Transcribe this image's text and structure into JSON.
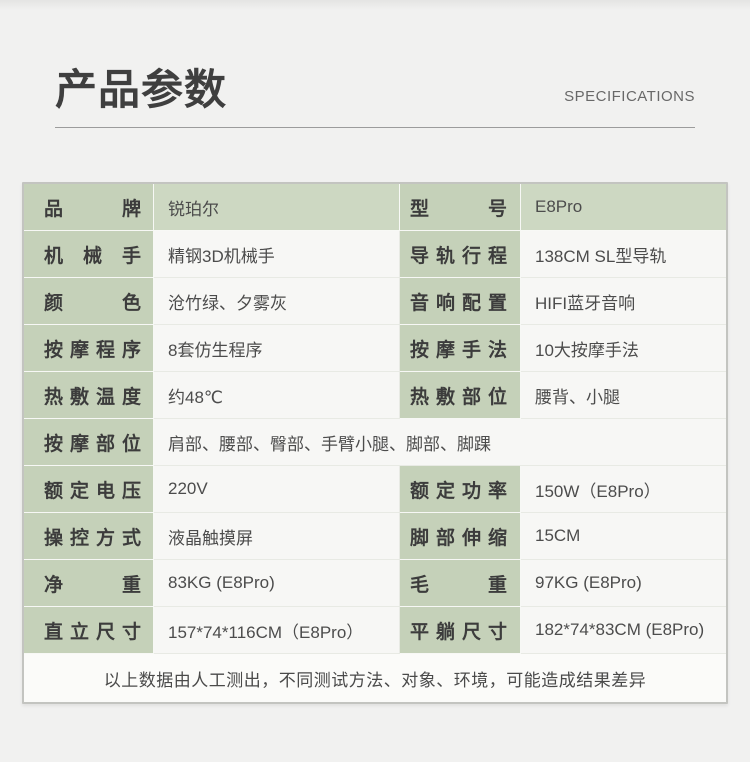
{
  "header": {
    "title": "产品参数",
    "subtitle": "SPECIFICATIONS"
  },
  "colors": {
    "page_background": "#f1f1f0",
    "label_cell_green": "#c5d1b9",
    "first_row_value_green": "#cdd8c2",
    "value_cell_background": "#f7f7f5",
    "outer_border": "#c3c4c0",
    "title_text": "#3f3f3f",
    "body_text": "#4c4c4c"
  },
  "table": {
    "rows": [
      {
        "l1": "品牌",
        "v1": "锐珀尔",
        "l2": "型号",
        "v2": "E8Pro"
      },
      {
        "l1": "机械手",
        "v1": "精钢3D机械手",
        "l2": "导轨行程",
        "v2": "138CM SL型导轨"
      },
      {
        "l1": "颜色",
        "v1": "沧竹绿、夕雾灰",
        "l2": "音响配置",
        "v2": "HIFI蓝牙音响"
      },
      {
        "l1": "按摩程序",
        "v1": "8套仿生程序",
        "l2": "按摩手法",
        "v2": "10大按摩手法"
      },
      {
        "l1": "热敷温度",
        "v1": "约48℃",
        "l2": "热敷部位",
        "v2": "腰背、小腿"
      },
      {
        "l1": "按摩部位",
        "v1": "肩部、腰部、臀部、手臂小腿、脚部、脚踝"
      },
      {
        "l1": "额定电压",
        "v1": "220V",
        "l2": "额定功率",
        "v2": "150W（E8Pro）"
      },
      {
        "l1": "操控方式",
        "v1": "液晶触摸屏",
        "l2": "脚部伸缩",
        "v2": "15CM"
      },
      {
        "l1": "净重",
        "v1": "83KG (E8Pro)",
        "l2": "毛重",
        "v2": "97KG (E8Pro)"
      },
      {
        "l1": "直立尺寸",
        "v1": "157*74*116CM（E8Pro）",
        "l2": "平躺尺寸",
        "v2": "182*74*83CM (E8Pro)"
      }
    ],
    "footnote": "以上数据由人工测出，不同测试方法、对象、环境，可能造成结果差异"
  }
}
